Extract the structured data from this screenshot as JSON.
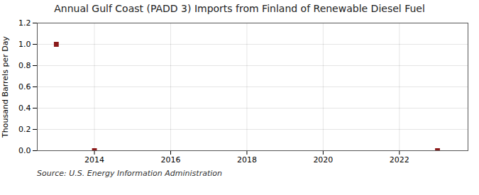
{
  "chart_data": {
    "type": "scatter",
    "title": "Annual Gulf Coast (PADD 3) Imports from Finland of Renewable Diesel Fuel",
    "ylabel": "Thousand Barrels per Day",
    "caption": "Source: U.S. Energy Information Administration",
    "x": [
      2013,
      2014,
      2023
    ],
    "values": [
      1.0,
      0.0,
      0.0
    ],
    "color": "#8b1a1a",
    "marker": "square",
    "xlim": [
      2012.5,
      2023.8
    ],
    "xticks": [
      2014,
      2016,
      2018,
      2020,
      2022
    ],
    "ylim": [
      0.0,
      1.2
    ],
    "yticks": [
      {
        "value": 0.0,
        "label": "0.0"
      },
      0.2,
      0.4,
      0.6,
      0.8,
      {
        "value": 1.0,
        "label": "1.0"
      },
      1.2
    ],
    "grid": true
  }
}
